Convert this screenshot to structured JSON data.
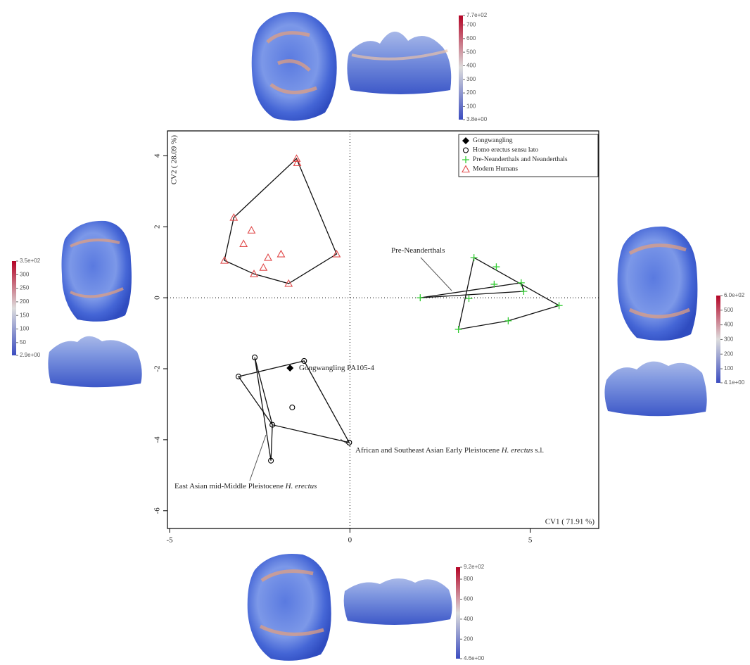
{
  "chart_data": {
    "type": "scatter",
    "xlabel": "CV1 ( 71.91 %)",
    "ylabel": "CV2 ( 28.09 %)",
    "xlim": [
      -5.06,
      6.9
    ],
    "ylim": [
      -6.5,
      4.7
    ],
    "xticks": [
      -5,
      0,
      5
    ],
    "yticks": [
      -6,
      -4,
      -2,
      0,
      2,
      4
    ],
    "zero_lines": true,
    "legend": "upper right",
    "series": [
      {
        "name": "Gongwangling",
        "marker": "diamond",
        "color": "#000000",
        "x": [
          -1.66
        ],
        "values": [
          -1.98
        ]
      },
      {
        "name": "Homo erectus sensu lato",
        "marker": "circle",
        "color": "#000000",
        "x": [
          -2.64,
          -3.09,
          -1.27,
          -1.6,
          -2.15,
          -0.02,
          -2.19
        ],
        "values": [
          -1.68,
          -2.22,
          -1.78,
          -3.09,
          -3.58,
          -4.08,
          -4.59
        ]
      },
      {
        "name": "Pre-Neanderthals and Neanderthals",
        "marker": "plus",
        "color": "#33cc33",
        "x": [
          1.95,
          3.44,
          4.06,
          4.0,
          4.75,
          4.82,
          5.8,
          3.3,
          4.39,
          3.01
        ],
        "values": [
          0,
          1.13,
          0.87,
          0.38,
          0.42,
          0.18,
          -0.22,
          -0.02,
          -0.65,
          -0.89
        ]
      },
      {
        "name": "Modern Humans",
        "marker": "triangle",
        "color": "#e04848",
        "x": [
          -1.48,
          -1.46,
          -3.22,
          -2.73,
          -2.95,
          -2.27,
          -1.91,
          -2.4,
          -3.48,
          -2.66,
          -1.7,
          -0.37
        ],
        "values": [
          3.92,
          3.8,
          2.26,
          1.9,
          1.52,
          1.13,
          1.23,
          0.85,
          1.05,
          0.67,
          0.4,
          1.23
        ]
      }
    ],
    "hulls": [
      {
        "series": 3,
        "points": [
          0,
          11,
          10,
          9,
          8,
          2
        ]
      },
      {
        "series": 1,
        "points": [
          1,
          2,
          5,
          4
        ]
      },
      {
        "series": 1,
        "points": [
          0,
          6,
          4
        ]
      },
      {
        "series": 2,
        "points": [
          0,
          4,
          5
        ]
      },
      {
        "series": 2,
        "points": [
          1,
          6,
          8,
          9
        ]
      }
    ],
    "annotations": [
      {
        "parts": [
          {
            "text": "Pre-Neanderthals",
            "italic": false
          }
        ]
      },
      {
        "parts": [
          {
            "text": "Gongwangling PA105-4",
            "italic": false
          }
        ]
      },
      {
        "parts": [
          {
            "text": "African and Southeast Asian Early Pleistocene ",
            "italic": false
          },
          {
            "text": "H. erectus",
            "italic": true
          },
          {
            "text": " s.l.",
            "italic": false
          }
        ]
      },
      {
        "parts": [
          {
            "text": "East Asian mid-Middle Pleistocene ",
            "italic": false
          },
          {
            "text": "H. erectus",
            "italic": true
          }
        ]
      }
    ],
    "colorbars": [
      {
        "range": [
          3.8,
          770
        ],
        "ticks": [
          {
            "value": 770,
            "label": "7.7e+02"
          },
          700,
          600,
          500,
          400,
          300,
          200,
          100,
          {
            "value": 3.8,
            "label": "3.8e+00"
          }
        ]
      },
      {
        "range": [
          2.9,
          350
        ],
        "ticks": [
          {
            "value": 350,
            "label": "3.5e+02"
          },
          300,
          250,
          200,
          150,
          100,
          50,
          {
            "value": 2.9,
            "label": "2.9e+00"
          }
        ]
      },
      {
        "range": [
          4.1,
          600
        ],
        "ticks": [
          {
            "value": 600,
            "label": "6.0e+02"
          },
          500,
          400,
          300,
          200,
          100,
          {
            "value": 4.1,
            "label": "4.1e+00"
          }
        ]
      },
      {
        "range": [
          4.6,
          920
        ],
        "ticks": [
          {
            "value": 920,
            "label": "9.2e+02"
          },
          800,
          600,
          400,
          200,
          {
            "value": 4.6,
            "label": "4.6e+00"
          }
        ]
      }
    ]
  }
}
